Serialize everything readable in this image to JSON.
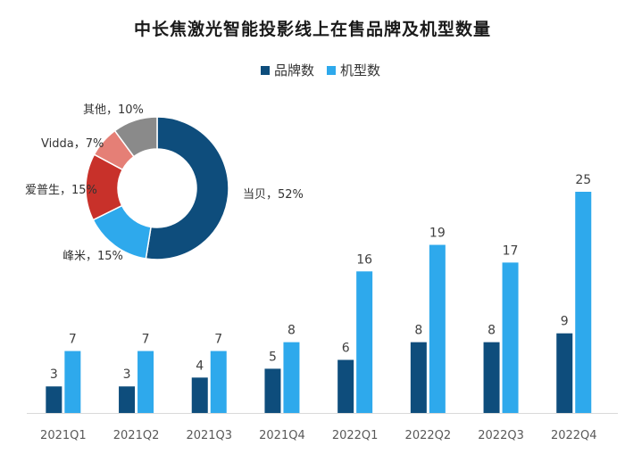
{
  "colors": {
    "brand": "#0e4d7c",
    "model": "#2ea9ec"
  },
  "chart_data": [
    {
      "type": "bar",
      "title": "中长焦激光智能投影线上在售品牌及机型数量",
      "categories": [
        "2021Q1",
        "2021Q2",
        "2021Q3",
        "2021Q4",
        "2022Q1",
        "2022Q2",
        "2022Q3",
        "2022Q4"
      ],
      "series": [
        {
          "name": "品牌数",
          "values": [
            3,
            3,
            4,
            5,
            6,
            8,
            8,
            9
          ]
        },
        {
          "name": "机型数",
          "values": [
            7,
            7,
            7,
            8,
            16,
            19,
            17,
            25
          ]
        }
      ],
      "ylim": [
        0,
        30
      ],
      "legend": "top",
      "grid": false
    },
    {
      "type": "pie",
      "donut": true,
      "slices": [
        {
          "label": "当贝，52%",
          "value": 52,
          "color": "#0e4d7c"
        },
        {
          "label": "峰米，15%",
          "value": 15,
          "color": "#2ea9ec"
        },
        {
          "label": "爱普生，15%",
          "value": 15,
          "color": "#c8312a"
        },
        {
          "label": "Vidda，7%",
          "value": 7,
          "color": "#e57f76"
        },
        {
          "label": "其他，10%",
          "value": 10,
          "color": "#8a8a8a"
        }
      ]
    }
  ]
}
